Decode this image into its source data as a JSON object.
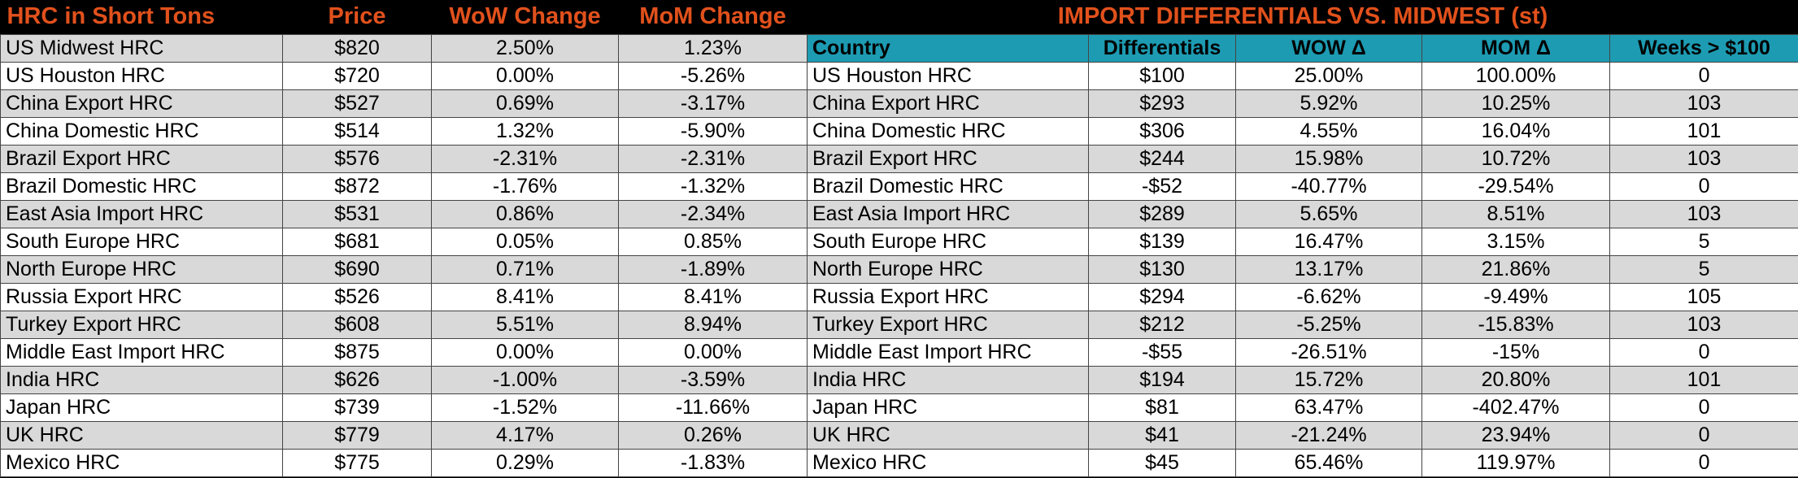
{
  "left": {
    "headers": [
      "HRC in Short Tons",
      "Price",
      "WoW Change",
      "MoM Change"
    ],
    "rows": [
      [
        "US Midwest HRC",
        "$820",
        "2.50%",
        "1.23%"
      ],
      [
        "US Houston HRC",
        "$720",
        "0.00%",
        "-5.26%"
      ],
      [
        "China Export HRC",
        "$527",
        "0.69%",
        "-3.17%"
      ],
      [
        "China Domestic HRC",
        "$514",
        "1.32%",
        "-5.90%"
      ],
      [
        "Brazil Export HRC",
        "$576",
        "-2.31%",
        "-2.31%"
      ],
      [
        "Brazil Domestic HRC",
        "$872",
        "-1.76%",
        "-1.32%"
      ],
      [
        "East Asia Import HRC",
        "$531",
        "0.86%",
        "-2.34%"
      ],
      [
        "South Europe HRC",
        "$681",
        "0.05%",
        "0.85%"
      ],
      [
        "North Europe HRC",
        "$690",
        "0.71%",
        "-1.89%"
      ],
      [
        "Russia Export HRC",
        "$526",
        "8.41%",
        "8.41%"
      ],
      [
        "Turkey Export HRC",
        "$608",
        "5.51%",
        "8.94%"
      ],
      [
        "Middle East Import HRC",
        "$875",
        "0.00%",
        "0.00%"
      ],
      [
        "India HRC",
        "$626",
        "-1.00%",
        "-3.59%"
      ],
      [
        "Japan HRC",
        "$739",
        "-1.52%",
        "-11.66%"
      ],
      [
        "UK HRC",
        "$779",
        "4.17%",
        "0.26%"
      ],
      [
        "Mexico HRC",
        "$775",
        "0.29%",
        "-1.83%"
      ]
    ]
  },
  "right": {
    "title": "IMPORT DIFFERENTIALS VS. MIDWEST (st)",
    "headers": [
      "Country",
      "Differentials",
      "WOW Δ",
      "MOM Δ",
      "Weeks > $100"
    ],
    "rows": [
      [
        "US Houston HRC",
        "$100",
        "25.00%",
        "100.00%",
        "0"
      ],
      [
        "China Export HRC",
        "$293",
        "5.92%",
        "10.25%",
        "103"
      ],
      [
        "China Domestic HRC",
        "$306",
        "4.55%",
        "16.04%",
        "101"
      ],
      [
        "Brazil Export HRC",
        "$244",
        "15.98%",
        "10.72%",
        "103"
      ],
      [
        "Brazil Domestic HRC",
        "-$52",
        "-40.77%",
        "-29.54%",
        "0"
      ],
      [
        "East Asia Import HRC",
        "$289",
        "5.65%",
        "8.51%",
        "103"
      ],
      [
        "South Europe HRC",
        "$139",
        "16.47%",
        "3.15%",
        "5"
      ],
      [
        "North Europe HRC",
        "$130",
        "13.17%",
        "21.86%",
        "5"
      ],
      [
        "Russia Export HRC",
        "$294",
        "-6.62%",
        "-9.49%",
        "105"
      ],
      [
        "Turkey Export HRC",
        "$212",
        "-5.25%",
        "-15.83%",
        "103"
      ],
      [
        "Middle East Import HRC",
        "-$55",
        "-26.51%",
        "-15%",
        "0"
      ],
      [
        "India HRC",
        "$194",
        "15.72%",
        "20.80%",
        "101"
      ],
      [
        "Japan HRC",
        "$81",
        "63.47%",
        "-402.47%",
        "0"
      ],
      [
        "UK HRC",
        "$41",
        "-21.24%",
        "23.94%",
        "0"
      ],
      [
        "Mexico HRC",
        "$45",
        "65.46%",
        "119.97%",
        "0"
      ]
    ]
  },
  "colors": {
    "header_text": "#e2511c",
    "column_header_bg": "#1d9bb2",
    "stripe_bg": "#d9d9d9"
  }
}
